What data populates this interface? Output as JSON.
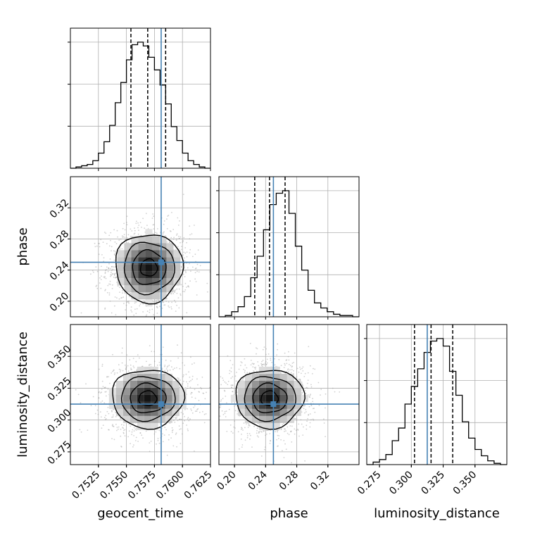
{
  "chart_data": {
    "type": "corner",
    "parameters": [
      "geocent_time",
      "phase",
      "luminosity_distance"
    ],
    "axis_labels": {
      "x": [
        "geocent_time",
        "phase",
        "luminosity_distance"
      ],
      "y": [
        "phase",
        "luminosity_distance"
      ]
    },
    "truths": {
      "geocent_time": 0.7581,
      "phase": 0.25,
      "luminosity_distance": 0.3125
    },
    "ranges": {
      "geocent_time": [
        0.75,
        0.7625
      ],
      "phase": [
        0.18,
        0.36
      ],
      "luminosity_distance": [
        0.265,
        0.375
      ]
    },
    "ticks": {
      "geocent_time": {
        "values": [
          0.7525,
          0.755,
          0.7575,
          0.76,
          0.7625
        ],
        "labels": [
          "0.7525",
          "0.7550",
          "0.7575",
          "0.7600",
          "0.7625"
        ]
      },
      "phase": {
        "values": [
          0.2,
          0.24,
          0.28,
          0.32
        ],
        "labels": [
          "0.20",
          "0.24",
          "0.28",
          "0.32"
        ]
      },
      "luminosity_distance": {
        "values": [
          0.275,
          0.3,
          0.325,
          0.35
        ],
        "labels": [
          "0.275",
          "0.300",
          "0.325",
          "0.350"
        ]
      }
    },
    "histograms": {
      "geocent_time": {
        "edges": [
          0.75,
          0.7625
        ],
        "counts": [
          0.0,
          0.01,
          0.02,
          0.03,
          0.06,
          0.12,
          0.21,
          0.34,
          0.52,
          0.68,
          0.86,
          0.98,
          1.0,
          0.97,
          0.88,
          0.78,
          0.66,
          0.51,
          0.33,
          0.22,
          0.12,
          0.06,
          0.03,
          0.01,
          0.0
        ],
        "quantiles": [
          0.7554,
          0.7569,
          0.7585
        ]
      },
      "phase": {
        "edges": [
          0.18,
          0.36
        ],
        "counts": [
          0.0,
          0.01,
          0.04,
          0.08,
          0.16,
          0.31,
          0.48,
          0.69,
          0.89,
          0.98,
          1.0,
          0.82,
          0.56,
          0.37,
          0.21,
          0.11,
          0.07,
          0.04,
          0.02,
          0.01,
          0.01,
          0.0
        ],
        "quantiles": [
          0.226,
          0.245,
          0.265
        ]
      },
      "luminosity_distance": {
        "edges": [
          0.265,
          0.375
        ],
        "counts": [
          0.0,
          0.02,
          0.04,
          0.08,
          0.19,
          0.29,
          0.48,
          0.62,
          0.76,
          0.89,
          0.98,
          1.0,
          0.94,
          0.74,
          0.55,
          0.34,
          0.21,
          0.12,
          0.07,
          0.03,
          0.01,
          0.0
        ],
        "quantiles": [
          0.3025,
          0.3155,
          0.3325
        ]
      }
    },
    "scatter_panels": [
      {
        "x": "geocent_time",
        "y": "phase",
        "center": [
          0.757,
          0.243
        ],
        "spread": [
          0.0015,
          0.022
        ]
      },
      {
        "x": "geocent_time",
        "y": "luminosity_distance",
        "center": [
          0.7569,
          0.317
        ],
        "spread": [
          0.0016,
          0.0115
        ]
      },
      {
        "x": "phase",
        "y": "luminosity_distance",
        "center": [
          0.245,
          0.317
        ],
        "spread": [
          0.022,
          0.0115
        ]
      }
    ],
    "grid": true,
    "colors": {
      "truth": "#4682b4",
      "hist": "#000000",
      "quantile": "#000000",
      "points": "#999999",
      "grid": "#b0b0b0"
    }
  }
}
